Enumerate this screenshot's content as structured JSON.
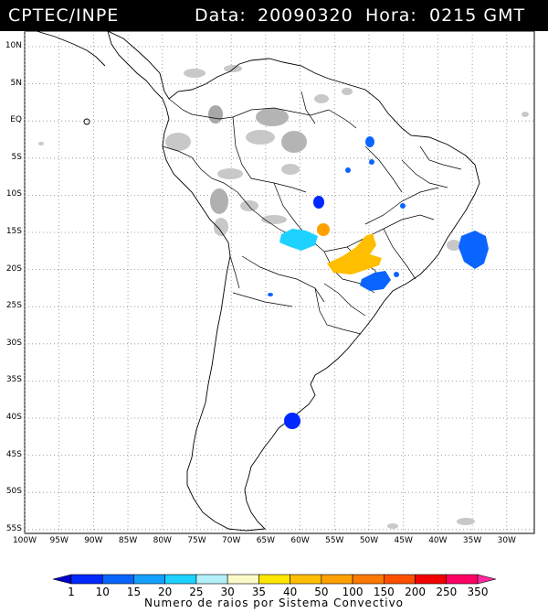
{
  "header": {
    "source": "CPTEC/INPE",
    "date_label": "Data:",
    "date_value": "20090320",
    "time_label": "Hora:",
    "time_value": "0215 GMT"
  },
  "map": {
    "lat_labels": [
      "10N",
      "5N",
      "EQ",
      "5S",
      "10S",
      "15S",
      "20S",
      "25S",
      "30S",
      "35S",
      "40S",
      "45S",
      "50S",
      "55S"
    ],
    "lon_labels": [
      "100W",
      "95W",
      "90W",
      "85W",
      "80W",
      "75W",
      "70W",
      "65W",
      "60W",
      "55W",
      "50W",
      "45W",
      "40W",
      "35W",
      "30W"
    ],
    "grid": "dotted"
  },
  "legend": {
    "values": [
      "1",
      "10",
      "15",
      "20",
      "25",
      "30",
      "35",
      "40",
      "50",
      "100",
      "150",
      "200",
      "250",
      "350"
    ],
    "colors": [
      "#0000c8",
      "#0028ff",
      "#0a64ff",
      "#14a0ff",
      "#1ed2ff",
      "#b4f0fa",
      "#fafac8",
      "#ffe600",
      "#ffbe00",
      "#ffa000",
      "#ff7800",
      "#ff5000",
      "#f00000",
      "#ff0064",
      "#ff28a0"
    ],
    "title": "Numero de raios por Sistema Convectivo"
  },
  "colors": {
    "cloud": "#c8c8c8",
    "cloud_dark": "#a8a8a8",
    "background": "#ffffff",
    "header_bg": "#000000"
  }
}
